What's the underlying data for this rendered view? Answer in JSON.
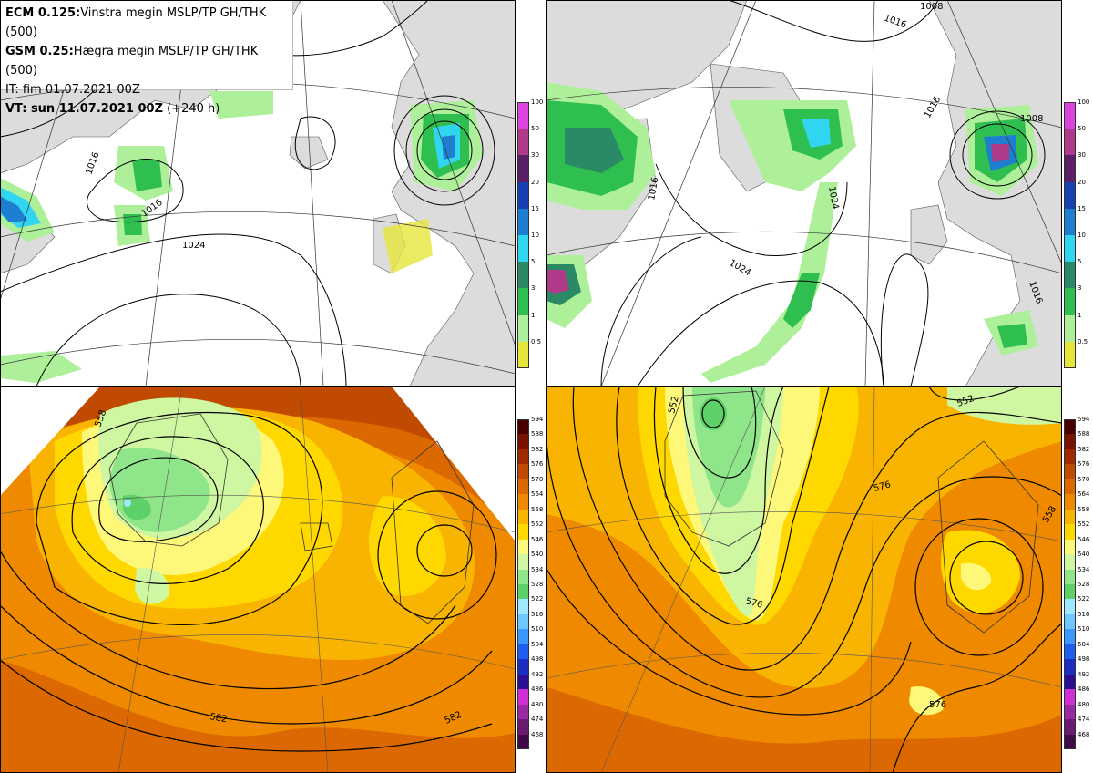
{
  "header": {
    "line1_bold": "ECM 0.125:",
    "line1_text": "Vinstra megin MSLP/TP GH/THK (500)",
    "line2_bold": "GSM 0.25:",
    "line2_text": "Hægra megin MSLP/TP GH/THK (500)",
    "line3": "IT: fim 01.07.2021 00Z",
    "line4_bold": "VT: sun 11.07.2021 00Z",
    "line4_text": "(+240 h)"
  },
  "colorbar_precip": {
    "labels": [
      "100",
      "50",
      "30",
      "20",
      "15",
      "10",
      "5",
      "3",
      "1",
      "0.5"
    ],
    "colors": [
      "#dd44dd",
      "#b03a8a",
      "#5a1f66",
      "#1840b0",
      "#1e7fd0",
      "#30d6f0",
      "#2a8a66",
      "#2fbf50",
      "#aef09a",
      "#e6e63a"
    ]
  },
  "colorbar_thickness": {
    "labels": [
      "594",
      "588",
      "582",
      "576",
      "570",
      "564",
      "558",
      "552",
      "546",
      "540",
      "534",
      "528",
      "522",
      "516",
      "510",
      "504",
      "498",
      "492",
      "486",
      "480",
      "474",
      "468"
    ],
    "colors": [
      "#4a0000",
      "#7a1200",
      "#a02a00",
      "#c04a00",
      "#db6800",
      "#ef8a00",
      "#f8b400",
      "#ffd800",
      "#fdf77a",
      "#cff6a0",
      "#8fe68a",
      "#5ed06a",
      "#9fe8ff",
      "#6ec8ff",
      "#3a98ff",
      "#1f5ff0",
      "#1a2fc0",
      "#2a1090",
      "#d22fd2",
      "#9a2aa0",
      "#6a1a70",
      "#3e0a48"
    ]
  },
  "contour_labels": {
    "tl": [
      "1016",
      "1024",
      "1016"
    ],
    "tr": [
      "1008",
      "1016",
      "1016",
      "1024",
      "1016",
      "1008",
      "1024",
      "1016"
    ],
    "bl": [
      "558",
      "582",
      "582"
    ],
    "br": [
      "552",
      "552",
      "576",
      "576",
      "576",
      "558"
    ]
  }
}
